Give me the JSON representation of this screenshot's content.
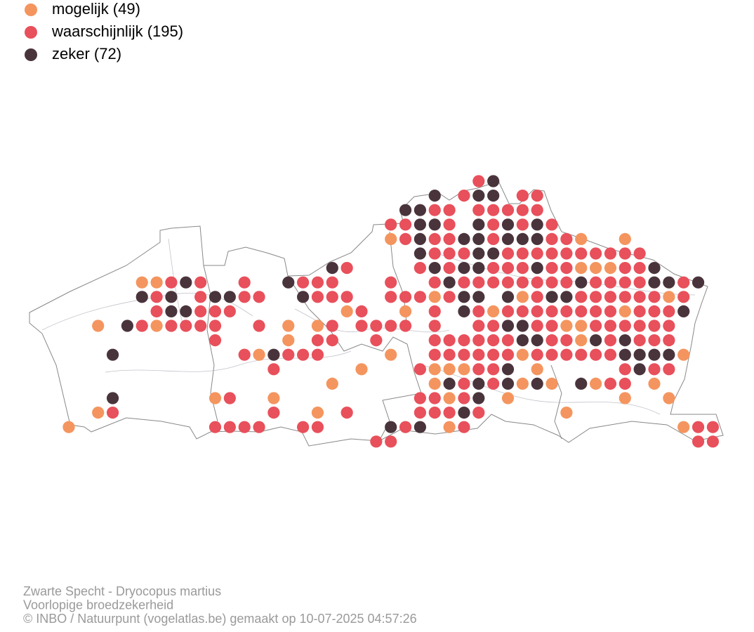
{
  "legend": [
    {
      "label": "mogelijk (49)",
      "color": "#f4955f"
    },
    {
      "label": "waarschijnlijk (195)",
      "color": "#e8505b"
    },
    {
      "label": "zeker (72)",
      "color": "#4a343c"
    }
  ],
  "footer": [
    "Zwarte Specht - Dryocopus martius",
    "Voorlopige broedzekerheid",
    "© INBO / Natuurpunt (vogelatlas.be) gemaakt op 10-07-2025 04:57:26"
  ]
}
